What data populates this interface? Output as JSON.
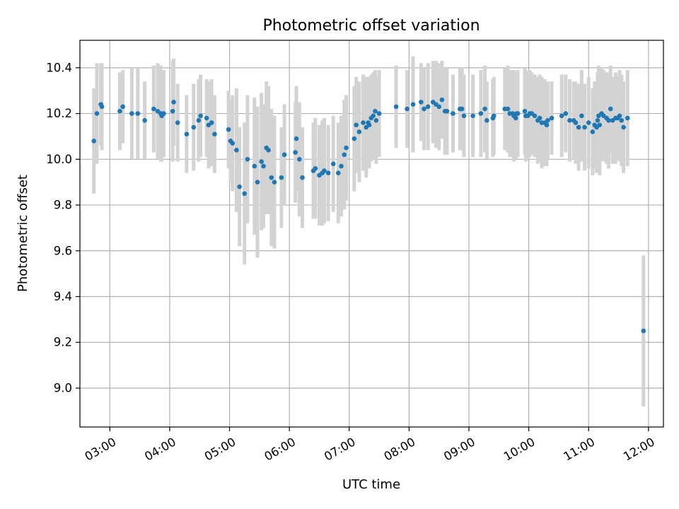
{
  "chart_data": {
    "type": "scatter",
    "title": "Photometric offset variation",
    "xlabel": "UTC time",
    "ylabel": "Photometric offset",
    "xlim": [
      "02:30",
      "12:15"
    ],
    "ylim": [
      8.83,
      10.52
    ],
    "x_ticks": [
      "03:00",
      "04:00",
      "05:00",
      "06:00",
      "07:00",
      "08:00",
      "09:00",
      "10:00",
      "11:00",
      "12:00"
    ],
    "y_ticks": [
      "9.0",
      "9.2",
      "9.4",
      "9.6",
      "9.8",
      "10.0",
      "10.2",
      "10.4"
    ],
    "grid": true,
    "legend": "none",
    "colors": {
      "marker": "#1f77b4",
      "errorbar": "#d3d3d3"
    },
    "series": [
      {
        "x": [
          "02:44",
          "02:47",
          "02:51",
          "02:52",
          "03:10",
          "03:13",
          "03:22",
          "03:28",
          "03:35",
          "03:44",
          "03:48",
          "03:51",
          "03:52",
          "03:54",
          "04:03",
          "04:04",
          "04:08",
          "04:17",
          "04:24",
          "04:29",
          "04:31",
          "04:37",
          "04:39",
          "04:42",
          "04:45",
          "04:59",
          "05:01",
          "05:03",
          "05:07",
          "05:10",
          "05:15",
          "05:18",
          "05:25",
          "05:28",
          "05:32",
          "05:34",
          "05:37",
          "05:39",
          "05:42",
          "05:45",
          "05:52",
          "05:55",
          "06:06",
          "06:07",
          "06:10",
          "06:13",
          "06:24",
          "06:26",
          "06:30",
          "06:33",
          "06:35",
          "06:39",
          "06:44",
          "06:49",
          "06:52",
          "06:55",
          "06:57",
          "07:05",
          "07:07",
          "07:10",
          "07:14",
          "07:17",
          "07:19",
          "07:20",
          "07:22",
          "07:24",
          "07:26",
          "07:27",
          "07:30",
          "07:47",
          "07:58",
          "08:04",
          "08:12",
          "08:15",
          "08:19",
          "08:24",
          "08:27",
          "08:30",
          "08:33",
          "08:36",
          "08:38",
          "08:44",
          "08:51",
          "08:53",
          "08:55",
          "09:04",
          "09:12",
          "09:16",
          "09:18",
          "09:24",
          "09:25",
          "09:36",
          "09:39",
          "09:41",
          "09:44",
          "09:45",
          "09:47",
          "09:48",
          "09:49",
          "09:56",
          "09:57",
          "09:59",
          "10:01",
          "10:03",
          "10:06",
          "10:09",
          "10:11",
          "10:13",
          "10:16",
          "10:18",
          "10:19",
          "10:23",
          "10:33",
          "10:37",
          "10:41",
          "10:45",
          "10:47",
          "10:50",
          "10:53",
          "10:56",
          "11:00",
          "11:04",
          "11:06",
          "11:08",
          "11:09",
          "11:10",
          "11:11",
          "11:13",
          "11:15",
          "11:18",
          "11:20",
          "11:22",
          "11:24",
          "11:27",
          "11:29",
          "11:31",
          "11:33",
          "11:35",
          "11:39",
          "11:55"
        ],
        "y": [
          10.08,
          10.2,
          10.24,
          10.23,
          10.21,
          10.23,
          10.2,
          10.2,
          10.17,
          10.22,
          10.21,
          10.2,
          10.19,
          10.2,
          10.21,
          10.25,
          10.16,
          10.11,
          10.14,
          10.17,
          10.19,
          10.18,
          10.15,
          10.16,
          10.11,
          10.13,
          10.08,
          10.07,
          10.04,
          9.88,
          9.85,
          10.0,
          9.97,
          9.9,
          9.99,
          9.97,
          10.05,
          10.04,
          9.92,
          9.9,
          9.92,
          10.02,
          10.03,
          10.09,
          10.0,
          9.92,
          9.95,
          9.96,
          9.93,
          9.94,
          9.95,
          9.94,
          9.98,
          9.94,
          9.97,
          10.02,
          10.05,
          10.09,
          10.15,
          10.12,
          10.16,
          10.14,
          10.16,
          10.15,
          10.18,
          10.19,
          10.21,
          10.17,
          10.2,
          10.23,
          10.22,
          10.24,
          10.25,
          10.22,
          10.23,
          10.25,
          10.24,
          10.23,
          10.26,
          10.21,
          10.21,
          10.2,
          10.22,
          10.22,
          10.19,
          10.19,
          10.2,
          10.22,
          10.17,
          10.18,
          10.19,
          10.22,
          10.22,
          10.2,
          10.2,
          10.19,
          10.18,
          10.2,
          10.2,
          10.21,
          10.19,
          10.19,
          10.2,
          10.2,
          10.19,
          10.17,
          10.18,
          10.16,
          10.16,
          10.15,
          10.17,
          10.18,
          10.19,
          10.2,
          10.17,
          10.17,
          10.16,
          10.14,
          10.19,
          10.14,
          10.16,
          10.12,
          10.15,
          10.14,
          10.17,
          10.19,
          10.15,
          10.2,
          10.19,
          10.18,
          10.17,
          10.22,
          10.17,
          10.18,
          10.18,
          10.19,
          10.17,
          10.14,
          10.18,
          9.25
        ],
        "err": [
          0.23,
          0.22,
          0.18,
          0.19,
          0.17,
          0.16,
          0.2,
          0.2,
          0.17,
          0.19,
          0.21,
          0.21,
          0.2,
          0.19,
          0.22,
          0.19,
          0.17,
          0.17,
          0.19,
          0.18,
          0.18,
          0.17,
          0.19,
          0.19,
          0.17,
          0.17,
          0.18,
          0.21,
          0.27,
          0.26,
          0.31,
          0.28,
          0.3,
          0.33,
          0.3,
          0.27,
          0.29,
          0.28,
          0.3,
          0.29,
          0.22,
          0.22,
          0.22,
          0.23,
          0.25,
          0.22,
          0.21,
          0.22,
          0.22,
          0.23,
          0.23,
          0.21,
          0.21,
          0.22,
          0.22,
          0.24,
          0.23,
          0.23,
          0.21,
          0.22,
          0.21,
          0.22,
          0.2,
          0.19,
          0.19,
          0.19,
          0.18,
          0.19,
          0.19,
          0.18,
          0.17,
          0.21,
          0.17,
          0.18,
          0.19,
          0.18,
          0.19,
          0.19,
          0.17,
          0.19,
          0.19,
          0.17,
          0.18,
          0.18,
          0.18,
          0.18,
          0.19,
          0.19,
          0.17,
          0.17,
          0.17,
          0.18,
          0.19,
          0.19,
          0.19,
          0.2,
          0.18,
          0.18,
          0.19,
          0.19,
          0.2,
          0.19,
          0.19,
          0.18,
          0.18,
          0.19,
          0.19,
          0.2,
          0.19,
          0.18,
          0.17,
          0.16,
          0.18,
          0.17,
          0.18,
          0.17,
          0.18,
          0.19,
          0.2,
          0.19,
          0.2,
          0.19,
          0.19,
          0.2,
          0.21,
          0.22,
          0.22,
          0.2,
          0.2,
          0.2,
          0.21,
          0.19,
          0.19,
          0.2,
          0.18,
          0.2,
          0.2,
          0.2,
          0.21,
          0.33
        ]
      }
    ]
  }
}
